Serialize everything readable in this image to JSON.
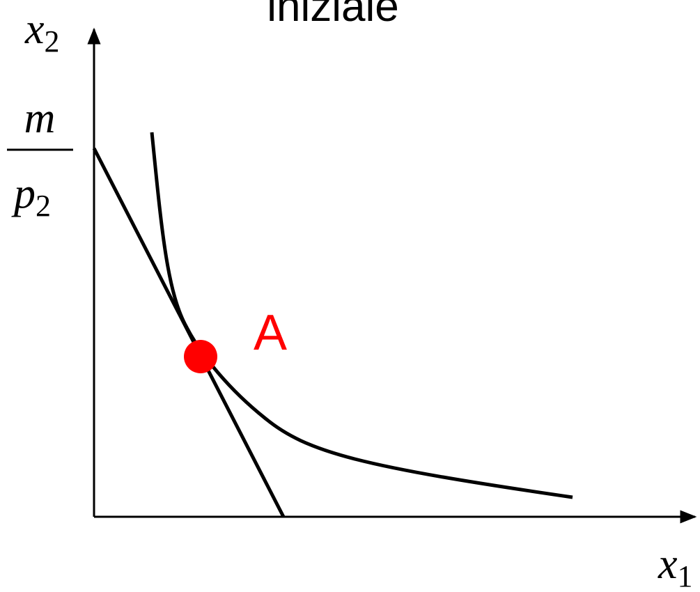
{
  "title": "iniziale",
  "axes": {
    "y_label": {
      "base": "x",
      "sub": "2"
    },
    "x_label": {
      "base": "x",
      "sub": "1"
    }
  },
  "intercept": {
    "numerator": "m",
    "denominator": {
      "base": "p",
      "sub": "2"
    }
  },
  "point": {
    "label": "A"
  }
}
